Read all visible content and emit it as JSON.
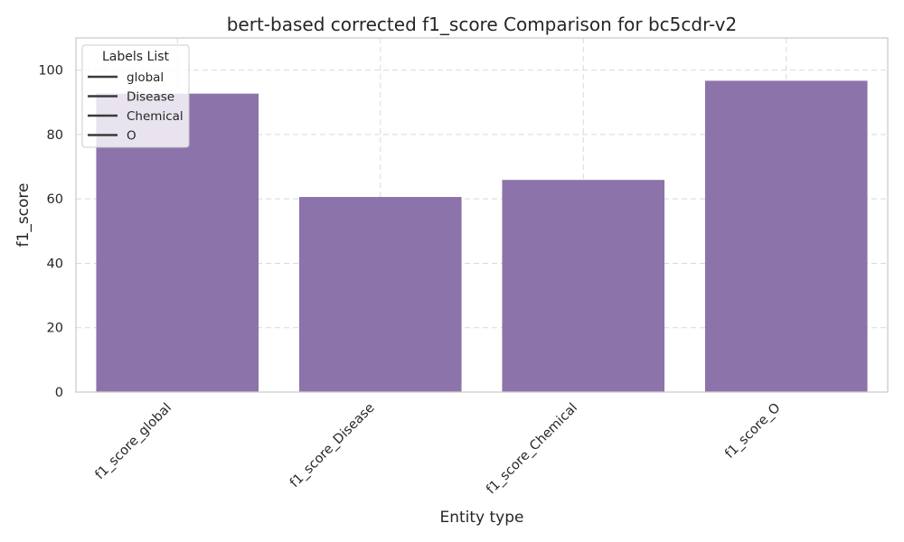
{
  "chart_data": {
    "type": "bar",
    "title": "bert-based corrected f1_score Comparison for bc5cdr-v2",
    "xlabel": "Entity type",
    "ylabel": "f1_score",
    "categories": [
      "f1_score_global",
      "f1_score_Disease",
      "f1_score_Chemical",
      "f1_score_O"
    ],
    "values": [
      92.7,
      60.6,
      65.9,
      96.7
    ],
    "ylim": [
      0,
      110
    ],
    "yticks": [
      0,
      20,
      40,
      60,
      80,
      100
    ],
    "grid": true,
    "bar_color": "#8c74aa",
    "legend": {
      "title": "Labels List",
      "position": "top-left",
      "entries": [
        "global",
        "Disease",
        "Chemical",
        "O"
      ],
      "line_color": "#3a3a3a"
    }
  }
}
